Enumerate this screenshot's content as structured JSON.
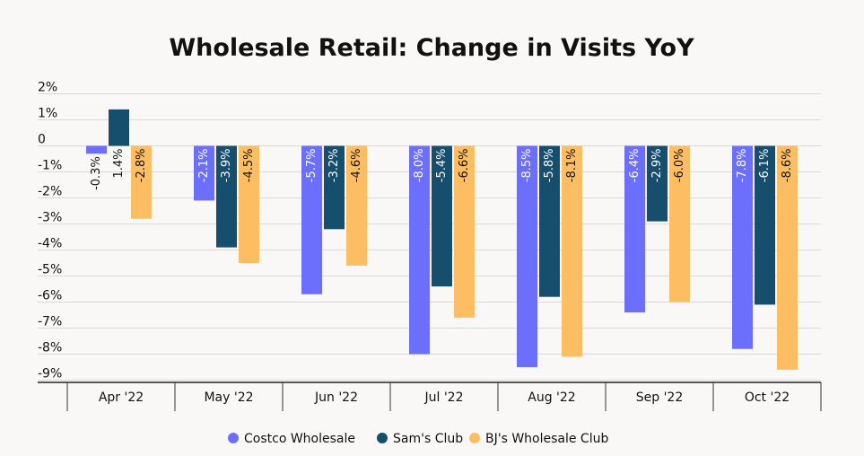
{
  "chart_data": {
    "type": "bar",
    "title": "Wholesale Retail: Change in Visits YoY",
    "xlabel": "",
    "ylabel": "",
    "categories": [
      "Apr '22",
      "May '22",
      "Jun '22",
      "Jul '22",
      "Aug '22",
      "Sep '22",
      "Oct '22"
    ],
    "series": [
      {
        "name": "Costco Wholesale",
        "color": "#6c6ffb",
        "values": [
          -0.3,
          -2.1,
          -5.7,
          -8.0,
          -8.5,
          -6.4,
          -7.8
        ]
      },
      {
        "name": "Sam's Club",
        "color": "#164e6e",
        "values": [
          1.4,
          -3.9,
          -3.2,
          -5.4,
          -5.8,
          -2.9,
          -6.1
        ]
      },
      {
        "name": "BJ's Wholesale Club",
        "color": "#fdbe63",
        "values": [
          -2.8,
          -4.5,
          -4.6,
          -6.6,
          -8.1,
          -6.0,
          -8.6
        ]
      }
    ],
    "value_labels": [
      [
        "-0.3%",
        "-2.1%",
        "-5.7%",
        "-8.0%",
        "-8.5%",
        "-6.4%",
        "-7.8%"
      ],
      [
        "1.4%",
        "-3.9%",
        "-3.2%",
        "-5.4%",
        "-5.8%",
        "-2.9%",
        "-6.1%"
      ],
      [
        "-2.8%",
        "-4.5%",
        "-4.6%",
        "-6.6%",
        "-8.1%",
        "-6.0%",
        "-8.6%"
      ]
    ],
    "yticks": [
      2,
      1,
      0,
      -1,
      -2,
      -3,
      -4,
      -5,
      -6,
      -7,
      -8,
      -9
    ],
    "ytick_labels": [
      "2%",
      "1%",
      "0",
      "-1%",
      "-2%",
      "-3%",
      "-4%",
      "-5%",
      "-6%",
      "-7%",
      "-8%",
      "-9%"
    ],
    "ylim": [
      -9.5,
      2
    ],
    "grid": true,
    "legend_position": "bottom"
  }
}
